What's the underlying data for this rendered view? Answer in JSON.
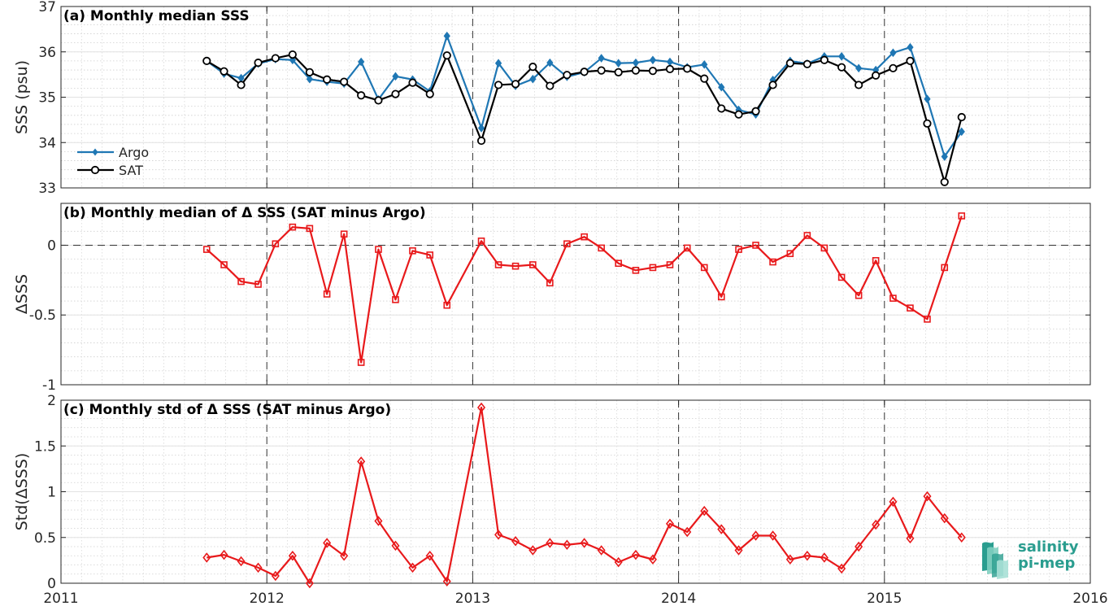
{
  "chart_data": [
    {
      "type": "line",
      "title": "(a) Monthly median SSS",
      "xlabel": "",
      "ylabel": "SSS (psu)",
      "xlim": [
        2011,
        2016
      ],
      "ylim": [
        33,
        37
      ],
      "xticks": [
        "2011",
        "2012",
        "2013",
        "2014",
        "2015",
        "2016"
      ],
      "yticks": [
        "33",
        "34",
        "35",
        "36",
        "37"
      ],
      "legend": "left",
      "grid": "minor dotted",
      "series": [
        {
          "name": "Argo",
          "color": "#1f77b4",
          "marker": "diamond",
          "x": [
            2011.708,
            2011.792,
            2011.875,
            2011.958,
            2012.042,
            2012.125,
            2012.208,
            2012.292,
            2012.375,
            2012.458,
            2012.542,
            2012.625,
            2012.708,
            2012.792,
            2012.875,
            2013.042,
            2013.125,
            2013.208,
            2013.292,
            2013.375,
            2013.458,
            2013.542,
            2013.625,
            2013.708,
            2013.792,
            2013.875,
            2013.958,
            2014.042,
            2014.125,
            2014.208,
            2014.292,
            2014.375,
            2014.458,
            2014.542,
            2014.625,
            2014.708,
            2014.792,
            2014.875,
            2014.958,
            2015.042,
            2015.125,
            2015.208,
            2015.292,
            2015.375
          ],
          "values": [
            35.8,
            35.52,
            35.42,
            35.74,
            35.84,
            35.82,
            35.4,
            35.34,
            35.3,
            35.78,
            34.95,
            35.46,
            35.39,
            35.13,
            36.35,
            34.32,
            35.75,
            35.25,
            35.4,
            35.76,
            35.45,
            35.55,
            35.86,
            35.75,
            35.76,
            35.82,
            35.78,
            35.66,
            35.72,
            35.22,
            34.72,
            34.62,
            35.38,
            35.8,
            35.74,
            35.9,
            35.9,
            35.64,
            35.6,
            35.98,
            36.1,
            34.96,
            33.69,
            34.24
          ]
        },
        {
          "name": "SAT",
          "color": "#000000",
          "marker": "circle",
          "x": [
            2011.708,
            2011.792,
            2011.875,
            2011.958,
            2012.042,
            2012.125,
            2012.208,
            2012.292,
            2012.375,
            2012.458,
            2012.542,
            2012.625,
            2012.708,
            2012.792,
            2012.875,
            2013.042,
            2013.125,
            2013.208,
            2013.292,
            2013.375,
            2013.458,
            2013.542,
            2013.625,
            2013.708,
            2013.792,
            2013.875,
            2013.958,
            2014.042,
            2014.125,
            2014.208,
            2014.292,
            2014.375,
            2014.458,
            2014.542,
            2014.625,
            2014.708,
            2014.792,
            2014.875,
            2014.958,
            2015.042,
            2015.125,
            2015.208,
            2015.292,
            2015.375
          ],
          "values": [
            35.8,
            35.57,
            35.27,
            35.76,
            35.86,
            35.94,
            35.55,
            35.39,
            35.34,
            35.04,
            34.93,
            35.07,
            35.32,
            35.07,
            35.92,
            34.04,
            35.27,
            35.29,
            35.67,
            35.25,
            35.49,
            35.56,
            35.59,
            35.55,
            35.59,
            35.58,
            35.62,
            35.63,
            35.41,
            34.75,
            34.62,
            34.69,
            35.27,
            35.75,
            35.73,
            35.82,
            35.66,
            35.27,
            35.48,
            35.64,
            35.8,
            34.42,
            33.13,
            34.56
          ]
        }
      ]
    },
    {
      "type": "line",
      "title": "(b) Monthly median of Δ SSS (SAT minus Argo)",
      "xlabel": "",
      "ylabel": "ΔSSS",
      "xlim": [
        2011,
        2016
      ],
      "ylim": [
        -1,
        0.3
      ],
      "yticks": [
        "-1",
        "-0.5",
        "0"
      ],
      "zero_line": "dashed",
      "series": [
        {
          "name": "",
          "color": "#e8191b",
          "marker": "square",
          "x": [
            2011.708,
            2011.792,
            2011.875,
            2011.958,
            2012.042,
            2012.125,
            2012.208,
            2012.292,
            2012.375,
            2012.458,
            2012.542,
            2012.625,
            2012.708,
            2012.792,
            2012.875,
            2013.042,
            2013.125,
            2013.208,
            2013.292,
            2013.375,
            2013.458,
            2013.542,
            2013.625,
            2013.708,
            2013.792,
            2013.875,
            2013.958,
            2014.042,
            2014.125,
            2014.208,
            2014.292,
            2014.375,
            2014.458,
            2014.542,
            2014.625,
            2014.708,
            2014.792,
            2014.875,
            2014.958,
            2015.042,
            2015.125,
            2015.208,
            2015.292,
            2015.375
          ],
          "values": [
            -0.03,
            -0.14,
            -0.26,
            -0.28,
            0.01,
            0.13,
            0.12,
            -0.35,
            0.08,
            -0.84,
            -0.03,
            -0.39,
            -0.04,
            -0.07,
            -0.43,
            0.03,
            -0.14,
            -0.15,
            -0.14,
            -0.27,
            0.01,
            0.06,
            -0.02,
            -0.13,
            -0.18,
            -0.16,
            -0.14,
            -0.02,
            -0.16,
            -0.37,
            -0.03,
            0.0,
            -0.12,
            -0.06,
            0.07,
            -0.02,
            -0.23,
            -0.36,
            -0.11,
            -0.38,
            -0.45,
            -0.53,
            -0.16,
            0.21
          ]
        }
      ]
    },
    {
      "type": "line",
      "title": "(c) Monthly std of Δ SSS (SAT minus Argo)",
      "xlabel": "",
      "ylabel": "Std(ΔSSS)",
      "xlim": [
        2011,
        2016
      ],
      "ylim": [
        0,
        2
      ],
      "yticks": [
        "0",
        "0.5",
        "1",
        "1.5",
        "2"
      ],
      "series": [
        {
          "name": "",
          "color": "#e8191b",
          "marker": "diamond-open",
          "x": [
            2011.708,
            2011.792,
            2011.875,
            2011.958,
            2012.042,
            2012.125,
            2012.208,
            2012.292,
            2012.375,
            2012.458,
            2012.542,
            2012.625,
            2012.708,
            2012.792,
            2012.875,
            2013.042,
            2013.125,
            2013.208,
            2013.292,
            2013.375,
            2013.458,
            2013.542,
            2013.625,
            2013.708,
            2013.792,
            2013.875,
            2013.958,
            2014.042,
            2014.125,
            2014.208,
            2014.292,
            2014.375,
            2014.458,
            2014.542,
            2014.625,
            2014.708,
            2014.792,
            2014.875,
            2014.958,
            2015.042,
            2015.125,
            2015.208,
            2015.292,
            2015.375
          ],
          "values": [
            0.28,
            0.31,
            0.24,
            0.17,
            0.08,
            0.3,
            0.0,
            0.44,
            0.3,
            1.33,
            0.68,
            0.41,
            0.17,
            0.3,
            0.02,
            1.92,
            0.53,
            0.46,
            0.36,
            0.44,
            0.42,
            0.44,
            0.36,
            0.23,
            0.31,
            0.26,
            0.65,
            0.56,
            0.79,
            0.59,
            0.36,
            0.52,
            0.52,
            0.26,
            0.3,
            0.28,
            0.16,
            0.4,
            0.64,
            0.89,
            0.49,
            0.95,
            0.71,
            0.5
          ]
        }
      ]
    }
  ],
  "logo": {
    "line1": "salinity",
    "line2": "pi-mep"
  }
}
